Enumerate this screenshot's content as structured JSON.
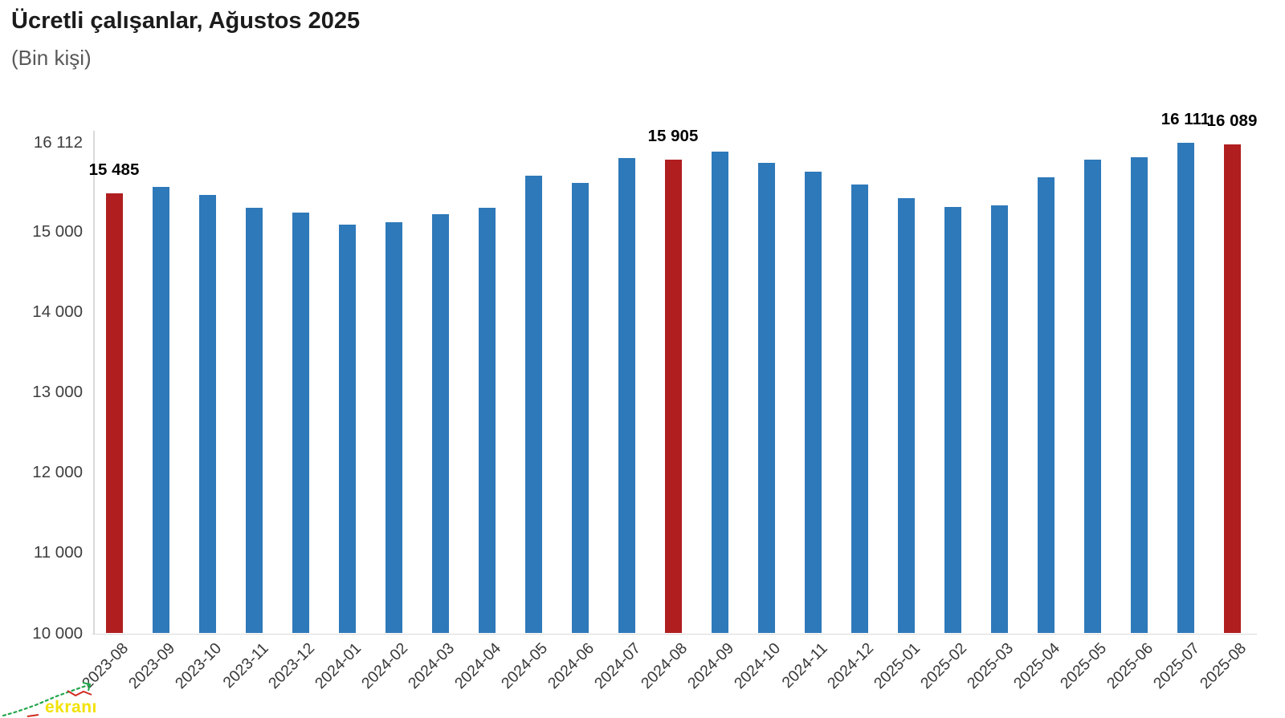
{
  "header": {
    "title": "Ücretli çalışanlar, Ağustos 2025",
    "subtitle": "(Bin kişi)"
  },
  "watermark": {
    "text": "ekranı",
    "text_color": "#f2e206",
    "line_color": "#21a64a",
    "accent_color": "#d02b20"
  },
  "colors": {
    "bar": "#2e79b9",
    "highlight": "#b01e20",
    "axis": "#d9d9d9",
    "tick_text": "#3e3e3e",
    "xlabel_text": "#383838",
    "data_label_text": "#000000"
  },
  "chart_data": {
    "type": "bar",
    "title": "Ücretli çalışanlar, Ağustos 2025",
    "subtitle": "(Bin kişi)",
    "xlabel": "",
    "ylabel": "Bin kişi",
    "ylim": [
      10000,
      16112
    ],
    "grid": false,
    "legend": "none",
    "categories": [
      "2023-08",
      "2023-09",
      "2023-10",
      "2023-11",
      "2023-12",
      "2024-01",
      "2024-02",
      "2024-03",
      "2024-04",
      "2024-05",
      "2024-06",
      "2024-07",
      "2024-08",
      "2024-09",
      "2024-10",
      "2024-11",
      "2024-12",
      "2025-01",
      "2025-02",
      "2025-03",
      "2025-04",
      "2025-05",
      "2025-06",
      "2025-07",
      "2025-08"
    ],
    "values": [
      15485,
      15565,
      15465,
      15305,
      15245,
      15095,
      15125,
      15225,
      15300,
      15705,
      15615,
      15920,
      15905,
      16000,
      15865,
      15755,
      15595,
      15420,
      15315,
      15330,
      15685,
      15900,
      15935,
      16111,
      16089
    ],
    "highlight_indices": [
      0,
      12,
      24
    ],
    "data_labels": [
      {
        "index": 0,
        "label": "15 485"
      },
      {
        "index": 12,
        "label": "15 905"
      },
      {
        "index": 23,
        "label": "16 111"
      },
      {
        "index": 24,
        "label": "16 089"
      }
    ],
    "y_ticks": [
      {
        "value": 16112,
        "label": "16 112"
      },
      {
        "value": 15000,
        "label": "15 000"
      },
      {
        "value": 14000,
        "label": "14 000"
      },
      {
        "value": 13000,
        "label": "13 000"
      },
      {
        "value": 12000,
        "label": "12 000"
      },
      {
        "value": 11000,
        "label": "11 000"
      },
      {
        "value": 10000,
        "label": "10 000"
      }
    ]
  }
}
